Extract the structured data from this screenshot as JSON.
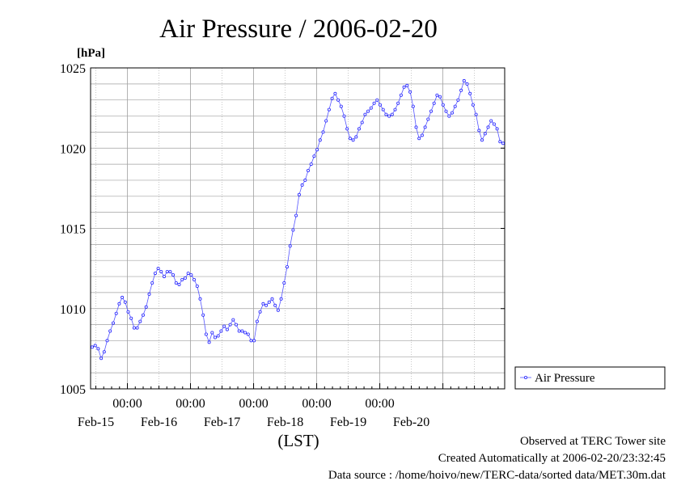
{
  "chart_data": {
    "type": "line",
    "title": "Air Pressure / 2006-02-20",
    "ylabel": "[hPa]",
    "xlabel": "(LST)",
    "ylim": [
      1005,
      1025
    ],
    "y_ticks": [
      "1005",
      "1010",
      "1015",
      "1020",
      "1025"
    ],
    "x_axis": {
      "start": "2006-02-14 10:00",
      "end": "2006-02-20 23:30",
      "time_ticks": [
        "00:00",
        "00:00",
        "00:00",
        "00:00",
        "00:00"
      ],
      "day_labels": [
        "Feb-15",
        "Feb-16",
        "Feb-17",
        "Feb-18",
        "Feb-19",
        "Feb-20"
      ]
    },
    "grid": true,
    "legend_position": "right",
    "series": [
      {
        "name": "Air Pressure",
        "color": "#2222ff",
        "values": [
          1007.6,
          1007.7,
          1007.5,
          1006.9,
          1007.3,
          1008.0,
          1008.6,
          1009.1,
          1009.7,
          1010.3,
          1010.7,
          1010.4,
          1009.8,
          1009.4,
          1008.8,
          1008.8,
          1009.2,
          1009.6,
          1010.1,
          1010.9,
          1011.6,
          1012.2,
          1012.5,
          1012.3,
          1012.0,
          1012.3,
          1012.3,
          1012.1,
          1011.6,
          1011.5,
          1011.8,
          1011.9,
          1012.2,
          1012.1,
          1011.8,
          1011.4,
          1010.6,
          1009.6,
          1008.4,
          1007.9,
          1008.5,
          1008.2,
          1008.3,
          1008.6,
          1008.9,
          1008.7,
          1009.0,
          1009.3,
          1009.0,
          1008.6,
          1008.6,
          1008.5,
          1008.4,
          1008.0,
          1008.0,
          1009.2,
          1009.8,
          1010.3,
          1010.2,
          1010.4,
          1010.6,
          1010.2,
          1009.9,
          1010.6,
          1011.6,
          1012.6,
          1013.9,
          1014.9,
          1015.8,
          1017.1,
          1017.7,
          1018.0,
          1018.6,
          1019.0,
          1019.5,
          1019.9,
          1020.5,
          1021.0,
          1021.7,
          1022.4,
          1023.1,
          1023.4,
          1023.0,
          1022.6,
          1022.0,
          1021.2,
          1020.6,
          1020.5,
          1020.7,
          1021.2,
          1021.6,
          1022.1,
          1022.3,
          1022.5,
          1022.8,
          1023.0,
          1022.7,
          1022.4,
          1022.1,
          1022.0,
          1022.1,
          1022.4,
          1022.8,
          1023.3,
          1023.8,
          1023.9,
          1023.5,
          1022.6,
          1021.3,
          1020.6,
          1020.8,
          1021.3,
          1021.8,
          1022.3,
          1022.8,
          1023.3,
          1023.2,
          1022.7,
          1022.3,
          1022.0,
          1022.2,
          1022.6,
          1023.0,
          1023.6,
          1024.2,
          1024.0,
          1023.4,
          1022.7,
          1022.1,
          1021.1,
          1020.5,
          1020.9,
          1021.3,
          1021.7,
          1021.5,
          1021.2,
          1020.4,
          1020.3
        ]
      }
    ],
    "footer": {
      "observed": "Observed at TERC Tower site",
      "created": "Created Automatically at 2006-02-20/23:32:45",
      "source": "Data source : /home/hoivo/new/TERC-data/sorted  data/MET.30m.dat"
    }
  }
}
